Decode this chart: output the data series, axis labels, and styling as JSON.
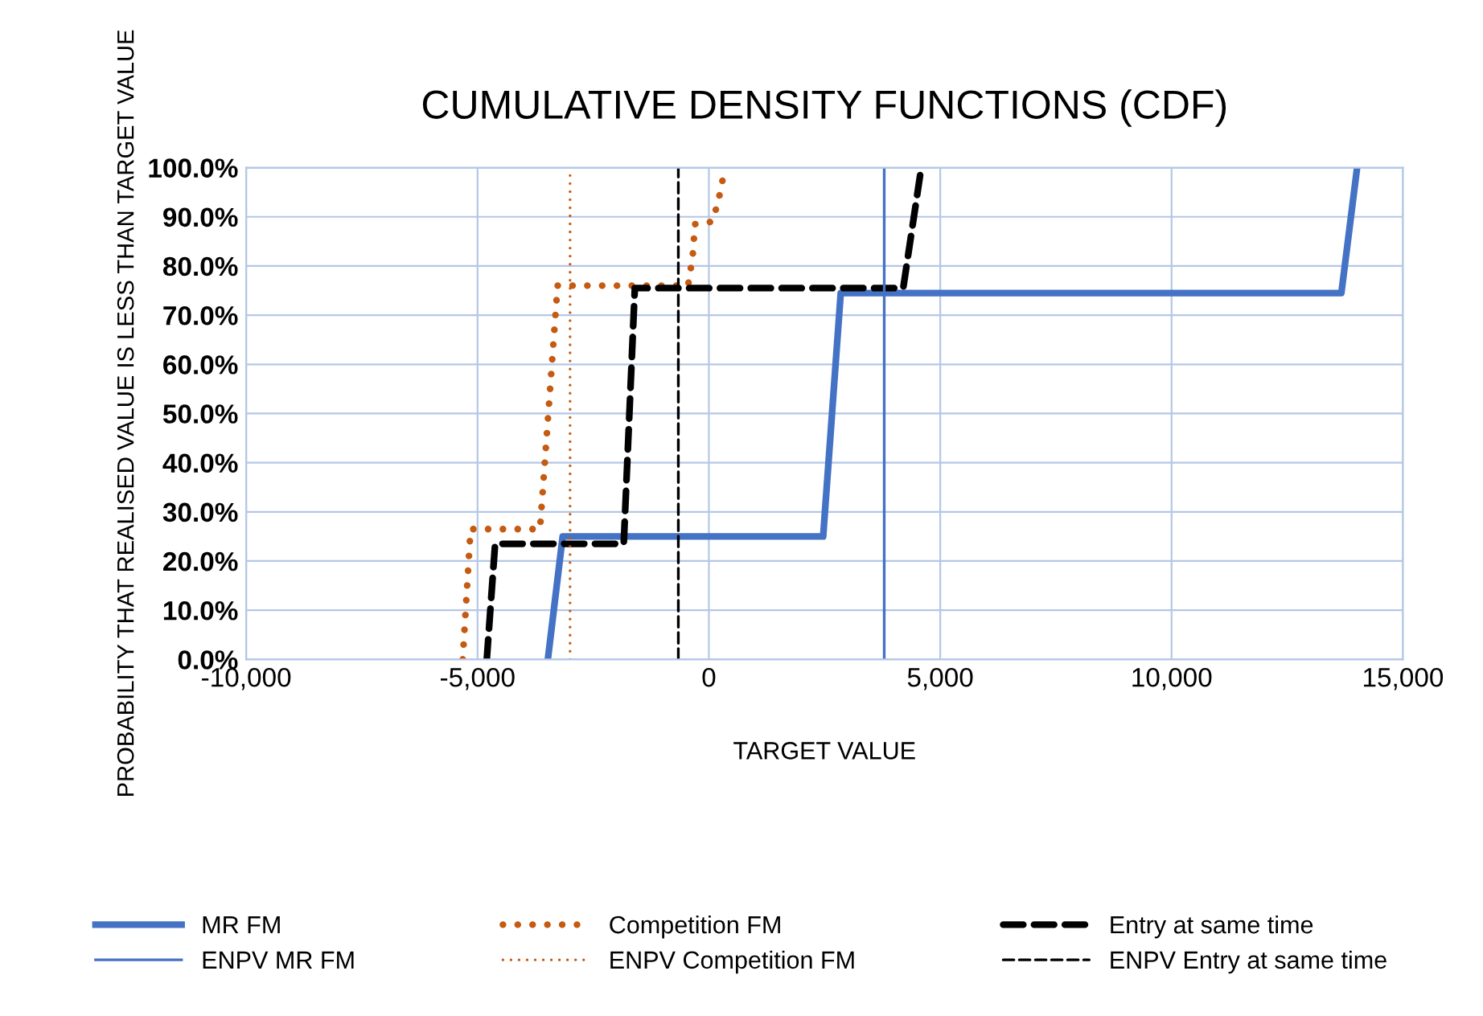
{
  "chart_data": {
    "type": "line",
    "title": "CUMULATIVE DENSITY FUNCTIONS (CDF)",
    "xlabel": "TARGET VALUE",
    "ylabel": "PROBABILITY THAT REALISED VALUE IS LESS THAN TARGET VALUE",
    "xlim": [
      -10000,
      15000
    ],
    "xticks": [
      {
        "value": -10000,
        "label": "-10,000"
      },
      {
        "value": -5000,
        "label": "-5,000"
      },
      0,
      {
        "value": 5000,
        "label": "5,000"
      },
      {
        "value": 10000,
        "label": "10,000"
      },
      {
        "value": 15000,
        "label": "15,000"
      }
    ],
    "ylim": [
      0,
      100
    ],
    "yticks": [
      {
        "value": 0,
        "label": "0.0%"
      },
      {
        "value": 10,
        "label": "10.0%"
      },
      {
        "value": 20,
        "label": "20.0%"
      },
      {
        "value": 30,
        "label": "30.0%"
      },
      {
        "value": 40,
        "label": "40.0%"
      },
      {
        "value": 50,
        "label": "50.0%"
      },
      {
        "value": 60,
        "label": "60.0%"
      },
      {
        "value": 70,
        "label": "70.0%"
      },
      {
        "value": 80,
        "label": "80.0%"
      },
      {
        "value": 90,
        "label": "90.0%"
      },
      {
        "value": 100,
        "label": "100.0%"
      }
    ],
    "grid": true,
    "legend": "bottom",
    "marker": "none",
    "series": [
      {
        "name": "MR FM",
        "color": "#4472c4",
        "line_style": "solid",
        "x": [
          -3480,
          -3160,
          2470,
          2850,
          13670,
          14010
        ],
        "values": [
          0,
          25,
          25,
          74.5,
          74.5,
          100
        ]
      },
      {
        "name": "Competition FM",
        "color": "#c55a11",
        "line_style": "dotted",
        "x": [
          -5320,
          -5150,
          -3650,
          -3270,
          -450,
          -350,
          -300,
          70,
          200,
          350
        ],
        "values": [
          0,
          26.5,
          26.5,
          76,
          76,
          82,
          88.5,
          89,
          93,
          100
        ]
      },
      {
        "name": "Entry at same time",
        "color": "#000000",
        "line_style": "dashed",
        "x": [
          -4800,
          -4620,
          -1840,
          -1600,
          4200,
          4590
        ],
        "values": [
          0,
          23.5,
          23.5,
          75.5,
          75.5,
          100
        ]
      },
      {
        "name": "ENPV MR FM",
        "color": "#4472c4",
        "line_style": "solid",
        "x": [
          3790,
          3790
        ],
        "values": [
          0,
          100
        ]
      },
      {
        "name": "ENPV Competition FM",
        "color": "#c55a11",
        "line_style": "dotted",
        "x": [
          -3000,
          -3000
        ],
        "values": [
          0,
          100
        ]
      },
      {
        "name": "ENPV Entry at same time",
        "color": "#000000",
        "line_style": "dashed",
        "x": [
          -660,
          -660
        ],
        "values": [
          0,
          100
        ]
      }
    ]
  }
}
